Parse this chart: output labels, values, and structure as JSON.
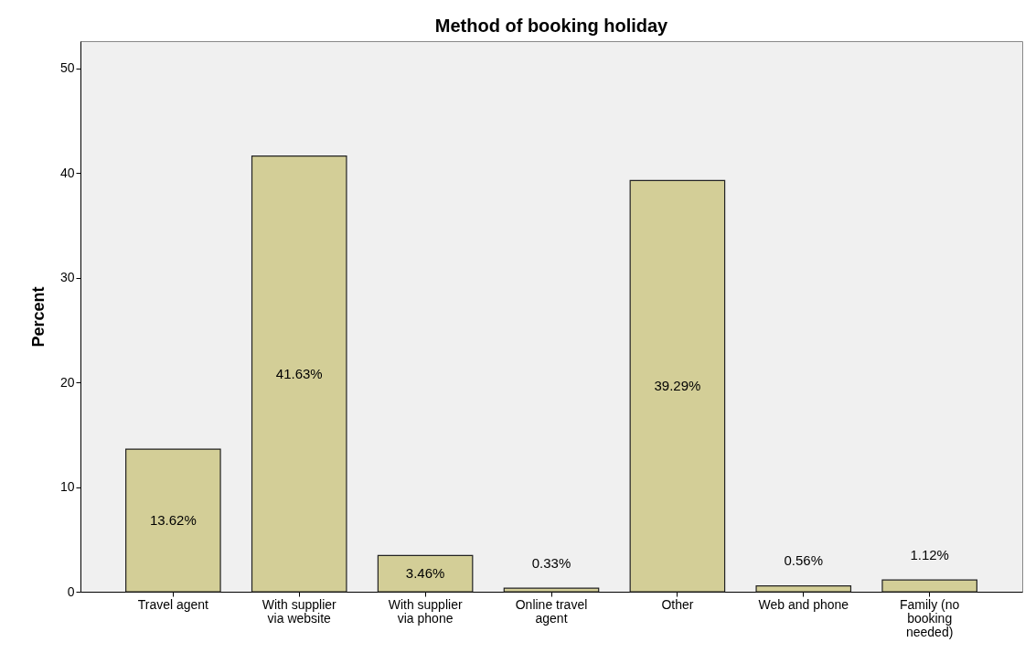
{
  "chart_data": {
    "type": "bar",
    "title": "Method of booking holiday",
    "ylabel": "Percent",
    "categories": [
      "Travel agent",
      "With supplier via website",
      "With supplier via phone",
      "Online travel agent",
      "Other",
      "Web and phone",
      "Family (no booking needed)"
    ],
    "values": [
      13.62,
      41.63,
      3.46,
      0.33,
      39.29,
      0.56,
      1.12
    ],
    "value_labels": [
      "13.62%",
      "41.63%",
      "3.46%",
      "0.33%",
      "39.29%",
      "0.56%",
      "1.12%"
    ],
    "color": "#d3ce97",
    "ylim": [
      0,
      52.6
    ],
    "yticks": [
      0,
      10,
      20,
      30,
      40,
      50
    ],
    "grid": false
  }
}
